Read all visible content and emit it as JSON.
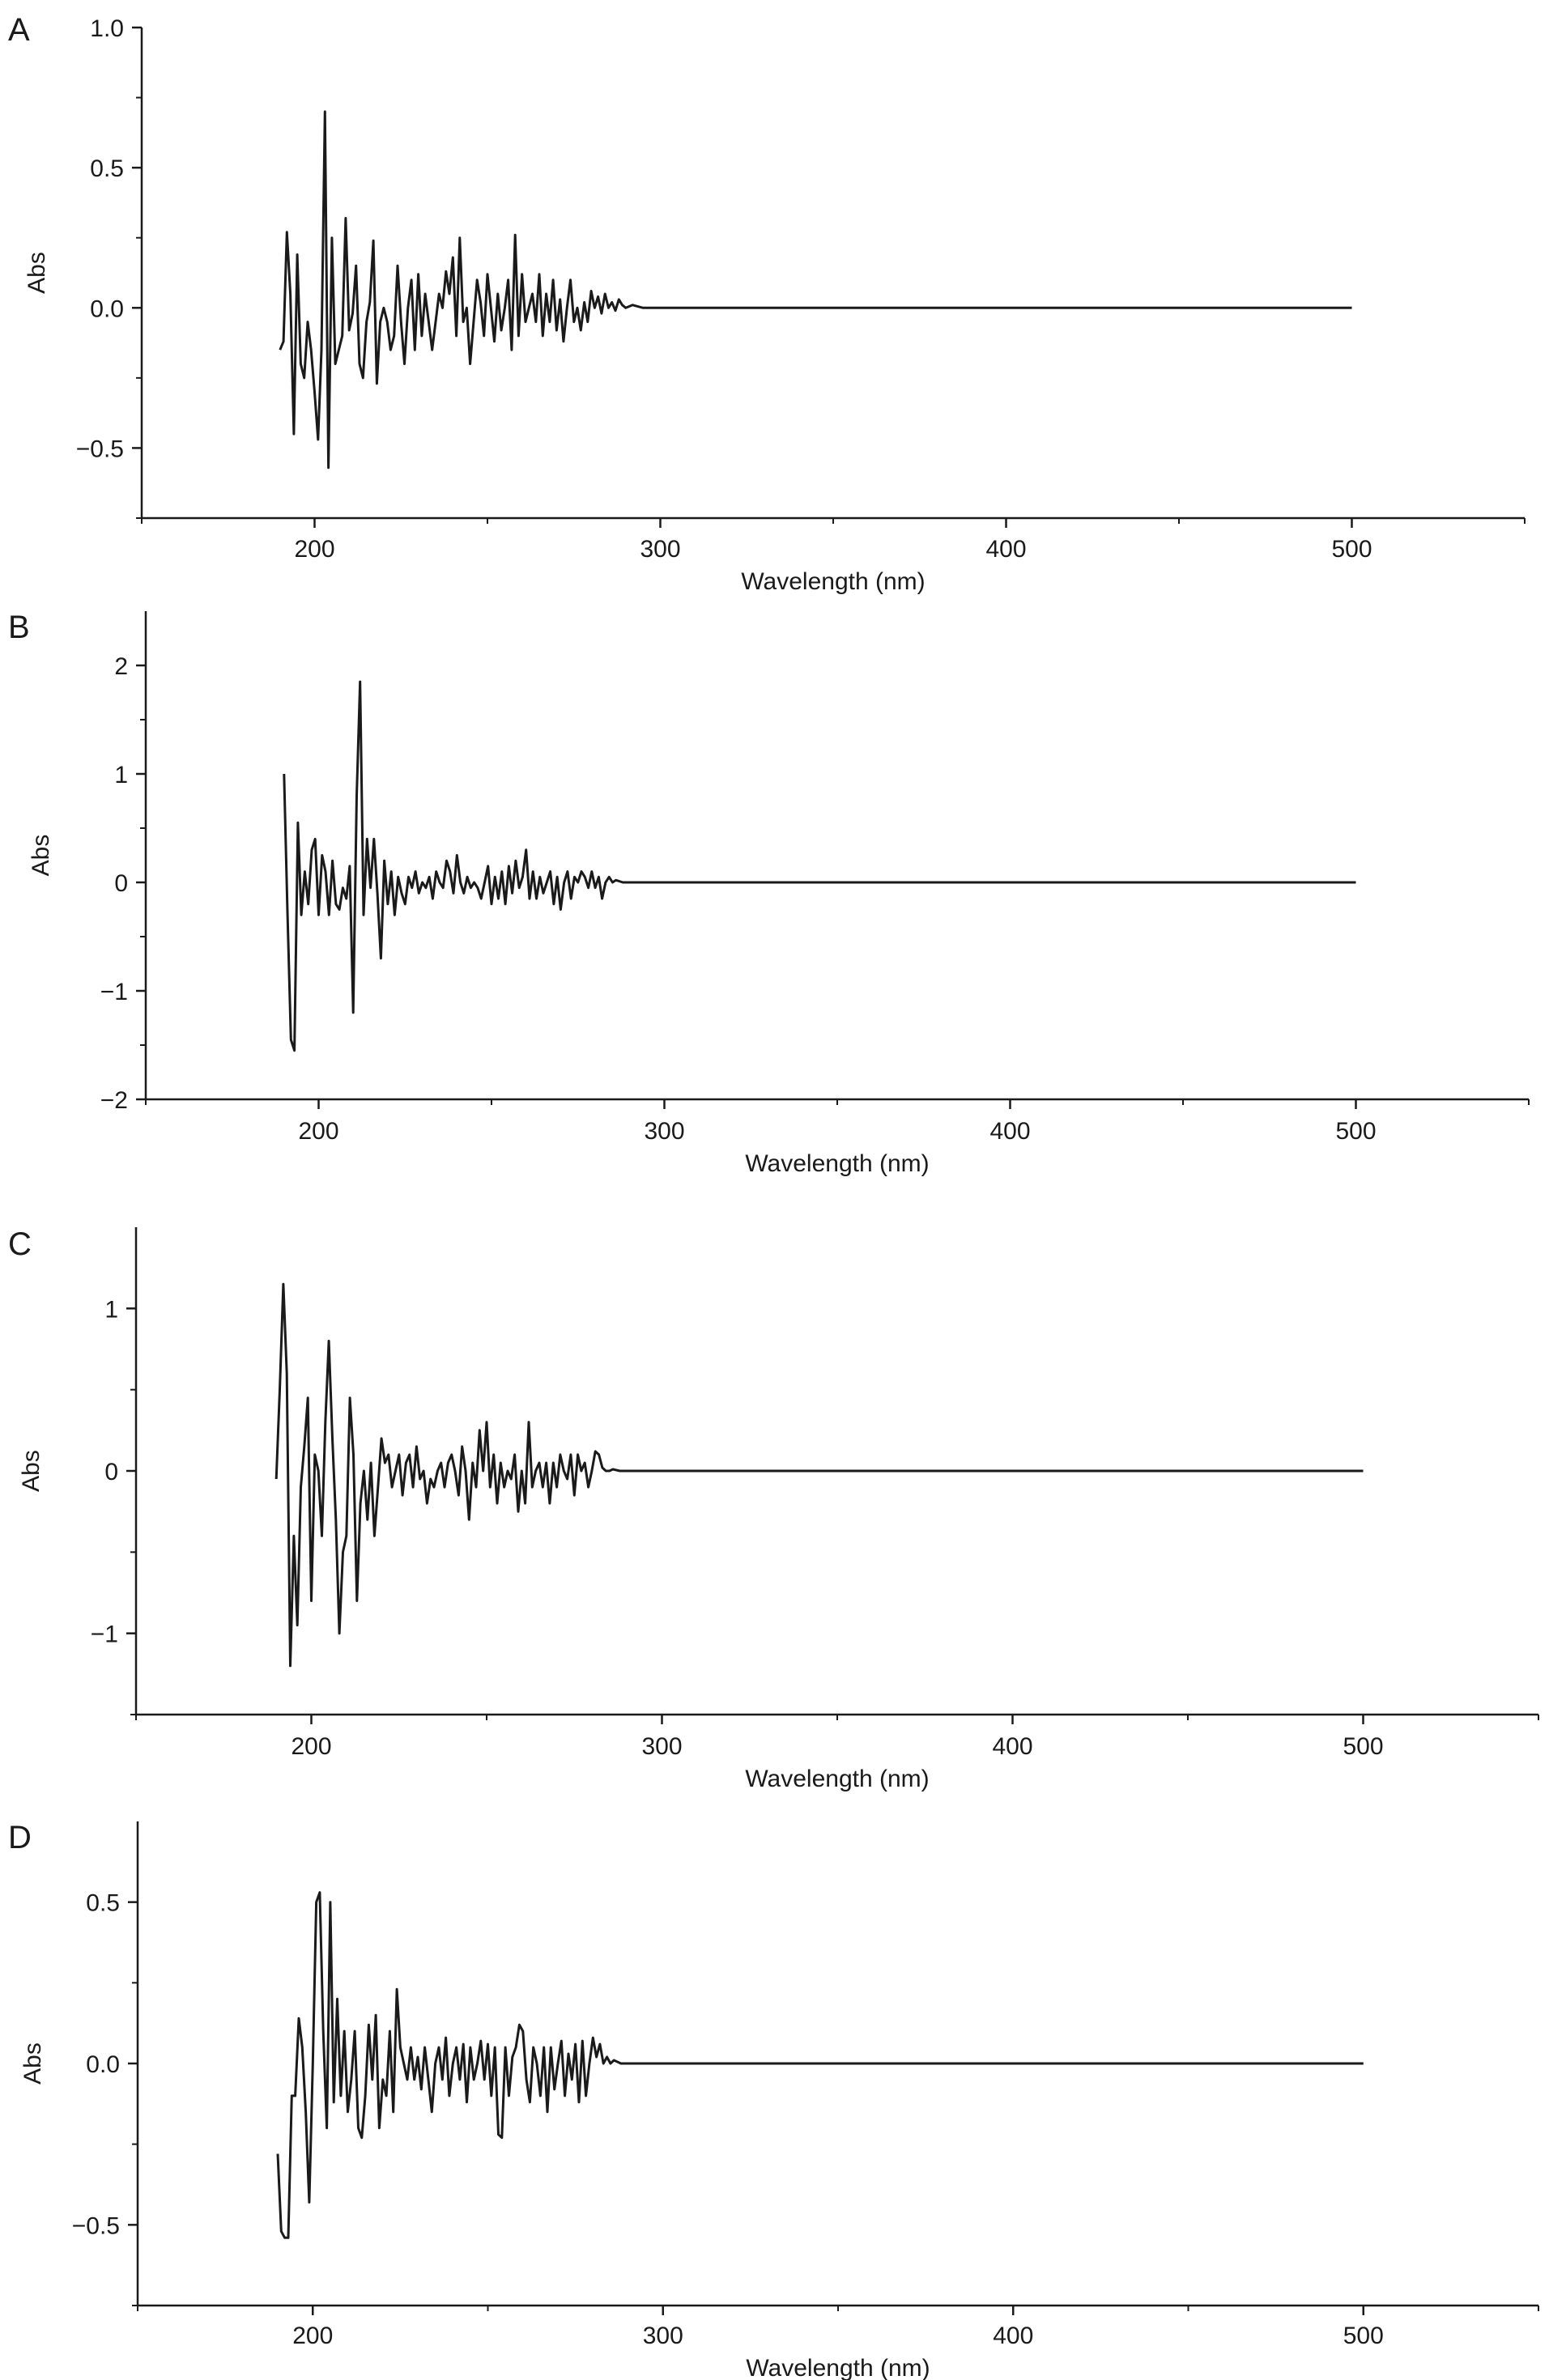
{
  "chart_data": [
    {
      "panel_label": "A",
      "type": "line",
      "xlabel": "Wavelength (nm)",
      "ylabel": "Abs",
      "xlim": [
        150,
        550
      ],
      "ylim": [
        -0.75,
        1.0
      ],
      "xticks": [
        200,
        300,
        400,
        500
      ],
      "xtick_labels": [
        "200",
        "300",
        "400",
        "500"
      ],
      "yticks": [
        -0.5,
        0.0,
        0.5,
        1.0
      ],
      "ytick_labels": [
        "−0.5",
        "0.0",
        "0.5",
        "1.0"
      ],
      "grid": false,
      "series": [
        {
          "color": "#1a1a1a",
          "x": [
            190,
            191,
            192,
            193,
            194,
            195,
            196,
            197,
            198,
            199,
            200,
            201,
            202,
            203,
            204,
            205,
            206,
            207,
            208,
            209,
            210,
            211,
            212,
            213,
            214,
            215,
            216,
            217,
            218,
            219,
            220,
            221,
            222,
            223,
            224,
            225,
            226,
            227,
            228,
            229,
            230,
            231,
            232,
            233,
            234,
            235,
            236,
            237,
            238,
            239,
            240,
            241,
            242,
            243,
            244,
            245,
            246,
            247,
            248,
            249,
            250,
            251,
            252,
            253,
            254,
            255,
            256,
            257,
            258,
            259,
            260,
            261,
            262,
            263,
            264,
            265,
            266,
            267,
            268,
            269,
            270,
            271,
            272,
            273,
            274,
            275,
            276,
            277,
            278,
            279,
            280,
            281,
            282,
            283,
            284,
            285,
            286,
            287,
            288,
            289,
            290,
            292,
            295,
            300,
            310,
            320,
            350,
            400,
            450,
            500
          ],
          "y": [
            -0.15,
            -0.12,
            0.27,
            0.05,
            -0.45,
            0.19,
            -0.2,
            -0.25,
            -0.05,
            -0.15,
            -0.3,
            -0.47,
            -0.15,
            0.7,
            -0.57,
            0.25,
            -0.2,
            -0.15,
            -0.1,
            0.32,
            -0.08,
            -0.02,
            0.15,
            -0.2,
            -0.25,
            -0.05,
            0.02,
            0.24,
            -0.27,
            -0.05,
            0.0,
            -0.05,
            -0.15,
            -0.1,
            0.15,
            -0.05,
            -0.2,
            0.0,
            0.1,
            -0.15,
            0.12,
            -0.1,
            0.05,
            -0.05,
            -0.15,
            -0.05,
            0.05,
            0.0,
            0.13,
            0.05,
            0.18,
            -0.1,
            0.25,
            -0.05,
            0.0,
            -0.2,
            -0.05,
            0.1,
            0.02,
            -0.1,
            0.12,
            0.0,
            -0.12,
            0.05,
            -0.08,
            0.0,
            0.1,
            -0.15,
            0.26,
            -0.1,
            0.12,
            -0.05,
            0.0,
            0.05,
            -0.05,
            0.12,
            -0.1,
            0.05,
            -0.05,
            0.1,
            -0.08,
            0.03,
            -0.12,
            0.0,
            0.1,
            -0.05,
            0.0,
            -0.08,
            0.02,
            -0.05,
            0.06,
            0.0,
            0.04,
            -0.02,
            0.05,
            0.0,
            0.02,
            -0.01,
            0.03,
            0.01,
            0.0,
            0.01,
            0.0,
            0.0,
            0.0,
            0.0,
            0.0,
            0.0,
            0.0,
            0.0
          ]
        }
      ]
    },
    {
      "panel_label": "B",
      "type": "line",
      "xlabel": "Wavelength (nm)",
      "ylabel": "Abs",
      "xlim": [
        150,
        550
      ],
      "ylim": [
        -2,
        2.5
      ],
      "xticks": [
        200,
        300,
        400,
        500
      ],
      "xtick_labels": [
        "200",
        "300",
        "400",
        "500"
      ],
      "yticks": [
        -2,
        -1,
        0,
        1,
        2
      ],
      "ytick_labels": [
        "−2",
        "−1",
        "0",
        "1",
        "2"
      ],
      "grid": false,
      "series": [
        {
          "color": "#1a1a1a",
          "x": [
            190,
            191,
            192,
            193,
            194,
            195,
            196,
            197,
            198,
            199,
            200,
            201,
            202,
            203,
            204,
            205,
            206,
            207,
            208,
            209,
            210,
            211,
            212,
            213,
            214,
            215,
            216,
            217,
            218,
            219,
            220,
            221,
            222,
            223,
            224,
            225,
            226,
            227,
            228,
            229,
            230,
            231,
            232,
            233,
            234,
            235,
            236,
            237,
            238,
            239,
            240,
            241,
            242,
            243,
            244,
            245,
            246,
            247,
            248,
            249,
            250,
            251,
            252,
            253,
            254,
            255,
            256,
            257,
            258,
            259,
            260,
            261,
            262,
            263,
            264,
            265,
            266,
            267,
            268,
            269,
            270,
            271,
            272,
            273,
            274,
            275,
            276,
            277,
            278,
            279,
            280,
            281,
            282,
            283,
            284,
            285,
            286,
            288,
            290,
            295,
            300,
            350,
            400,
            450,
            500
          ],
          "y": [
            1.0,
            -0.3,
            -1.45,
            -1.55,
            0.55,
            -0.3,
            0.1,
            -0.2,
            0.3,
            0.4,
            -0.3,
            0.25,
            0.1,
            -0.3,
            0.2,
            -0.2,
            -0.25,
            -0.05,
            -0.15,
            0.15,
            -1.2,
            0.8,
            1.85,
            -0.3,
            0.4,
            -0.05,
            0.4,
            -0.1,
            -0.7,
            0.2,
            -0.2,
            0.1,
            -0.3,
            0.05,
            -0.1,
            -0.2,
            0.05,
            -0.05,
            0.1,
            -0.1,
            0.0,
            -0.05,
            0.05,
            -0.15,
            0.1,
            0.0,
            -0.05,
            0.2,
            0.1,
            -0.1,
            0.25,
            0.0,
            -0.1,
            0.05,
            -0.05,
            0.0,
            -0.05,
            -0.15,
            0.0,
            0.15,
            -0.2,
            0.05,
            -0.15,
            0.1,
            -0.2,
            0.15,
            -0.1,
            0.2,
            -0.05,
            0.05,
            0.3,
            -0.15,
            0.1,
            -0.15,
            0.05,
            -0.1,
            0.0,
            0.1,
            -0.2,
            0.05,
            -0.25,
            0.0,
            0.1,
            -0.15,
            0.05,
            0.0,
            0.1,
            0.05,
            -0.05,
            0.1,
            -0.05,
            0.05,
            -0.15,
            0.0,
            0.05,
            0.0,
            0.02,
            0.0,
            0.0,
            0.0,
            0.0,
            0.0,
            0.0,
            0.0,
            0.0
          ]
        }
      ]
    },
    {
      "panel_label": "C",
      "type": "line",
      "xlabel": "Wavelength (nm)",
      "ylabel": "Abs",
      "xlim": [
        150,
        550
      ],
      "ylim": [
        -1.5,
        1.5
      ],
      "xticks": [
        200,
        300,
        400,
        500
      ],
      "xtick_labels": [
        "200",
        "300",
        "400",
        "500"
      ],
      "yticks": [
        -1,
        0,
        1
      ],
      "ytick_labels": [
        "−1",
        "0",
        "1"
      ],
      "grid": false,
      "series": [
        {
          "color": "#1a1a1a",
          "x": [
            190,
            191,
            192,
            193,
            194,
            195,
            196,
            197,
            198,
            199,
            200,
            201,
            202,
            203,
            204,
            205,
            206,
            207,
            208,
            209,
            210,
            211,
            212,
            213,
            214,
            215,
            216,
            217,
            218,
            219,
            220,
            221,
            222,
            223,
            224,
            225,
            226,
            227,
            228,
            229,
            230,
            231,
            232,
            233,
            234,
            235,
            236,
            237,
            238,
            239,
            240,
            241,
            242,
            243,
            244,
            245,
            246,
            247,
            248,
            249,
            250,
            251,
            252,
            253,
            254,
            255,
            256,
            257,
            258,
            259,
            260,
            261,
            262,
            263,
            264,
            265,
            266,
            267,
            268,
            269,
            270,
            271,
            272,
            273,
            274,
            275,
            276,
            277,
            278,
            279,
            280,
            281,
            282,
            283,
            284,
            285,
            286,
            288,
            290,
            295,
            300,
            350,
            400,
            450,
            500
          ],
          "y": [
            -0.05,
            0.5,
            1.15,
            0.6,
            -1.2,
            -0.4,
            -0.95,
            -0.1,
            0.15,
            0.45,
            -0.8,
            0.1,
            0.0,
            -0.4,
            0.3,
            0.8,
            0.2,
            -0.3,
            -1.0,
            -0.5,
            -0.4,
            0.45,
            0.1,
            -0.8,
            -0.2,
            0.0,
            -0.3,
            0.05,
            -0.4,
            -0.1,
            0.2,
            0.05,
            0.1,
            -0.1,
            0.0,
            0.1,
            -0.15,
            0.05,
            0.1,
            -0.1,
            0.15,
            -0.05,
            0.0,
            -0.2,
            -0.05,
            -0.1,
            0.0,
            0.05,
            -0.1,
            0.05,
            0.1,
            0.0,
            -0.15,
            0.15,
            0.0,
            -0.3,
            0.05,
            -0.1,
            0.25,
            0.0,
            0.3,
            -0.1,
            0.1,
            -0.2,
            0.05,
            -0.1,
            0.0,
            -0.05,
            0.1,
            -0.25,
            0.0,
            -0.2,
            0.3,
            -0.1,
            0.0,
            0.05,
            -0.1,
            0.05,
            -0.2,
            0.05,
            -0.1,
            0.1,
            0.0,
            -0.05,
            0.1,
            -0.15,
            0.1,
            0.0,
            0.05,
            -0.1,
            0.0,
            0.12,
            0.1,
            0.02,
            0.0,
            0.0,
            0.01,
            0.0,
            0.0,
            0.0,
            0.0,
            0.0,
            0.0,
            0.0,
            0.0
          ]
        }
      ]
    },
    {
      "panel_label": "D",
      "type": "line",
      "xlabel": "Wavelength (nm)",
      "ylabel": "Abs",
      "xlim": [
        150,
        550
      ],
      "ylim": [
        -0.75,
        0.75
      ],
      "xticks": [
        200,
        300,
        400,
        500
      ],
      "xtick_labels": [
        "200",
        "300",
        "400",
        "500"
      ],
      "yticks": [
        -0.5,
        0.0,
        0.5
      ],
      "ytick_labels": [
        "−0.5",
        "0.0",
        "0.5"
      ],
      "grid": false,
      "series": [
        {
          "color": "#1a1a1a",
          "x": [
            190,
            191,
            192,
            193,
            194,
            195,
            196,
            197,
            198,
            199,
            200,
            201,
            202,
            203,
            204,
            205,
            206,
            207,
            208,
            209,
            210,
            211,
            212,
            213,
            214,
            215,
            216,
            217,
            218,
            219,
            220,
            221,
            222,
            223,
            224,
            225,
            226,
            227,
            228,
            229,
            230,
            231,
            232,
            233,
            234,
            235,
            236,
            237,
            238,
            239,
            240,
            241,
            242,
            243,
            244,
            245,
            246,
            247,
            248,
            249,
            250,
            251,
            252,
            253,
            254,
            255,
            256,
            257,
            258,
            259,
            260,
            261,
            262,
            263,
            264,
            265,
            266,
            267,
            268,
            269,
            270,
            271,
            272,
            273,
            274,
            275,
            276,
            277,
            278,
            279,
            280,
            281,
            282,
            283,
            284,
            285,
            286,
            288,
            290,
            295,
            300,
            350,
            400,
            450,
            500
          ],
          "y": [
            -0.28,
            -0.52,
            -0.54,
            -0.54,
            -0.1,
            -0.1,
            0.14,
            0.05,
            -0.15,
            -0.43,
            0.0,
            0.5,
            0.53,
            0.1,
            -0.2,
            0.5,
            -0.12,
            0.2,
            -0.1,
            0.1,
            -0.15,
            -0.05,
            0.1,
            -0.2,
            -0.23,
            -0.1,
            0.12,
            -0.05,
            0.15,
            -0.2,
            -0.05,
            -0.1,
            0.1,
            -0.15,
            0.23,
            0.05,
            0.0,
            -0.05,
            0.05,
            -0.05,
            0.02,
            -0.08,
            0.05,
            -0.05,
            -0.15,
            0.0,
            0.05,
            -0.05,
            0.08,
            -0.1,
            0.0,
            0.05,
            -0.05,
            0.06,
            -0.12,
            0.05,
            -0.05,
            0.0,
            0.07,
            -0.05,
            0.06,
            -0.1,
            0.05,
            -0.22,
            -0.23,
            0.05,
            -0.1,
            0.02,
            0.05,
            0.12,
            0.1,
            -0.05,
            -0.12,
            0.05,
            0.0,
            -0.1,
            0.05,
            -0.15,
            0.05,
            -0.08,
            0.0,
            0.07,
            -0.1,
            0.03,
            -0.05,
            0.06,
            -0.12,
            0.07,
            -0.1,
            0.0,
            0.08,
            0.02,
            0.06,
            0.0,
            0.02,
            0.0,
            0.01,
            0.0,
            0.0,
            0.0,
            0.0,
            0.0,
            0.0,
            0.0,
            0.0
          ]
        }
      ]
    }
  ]
}
